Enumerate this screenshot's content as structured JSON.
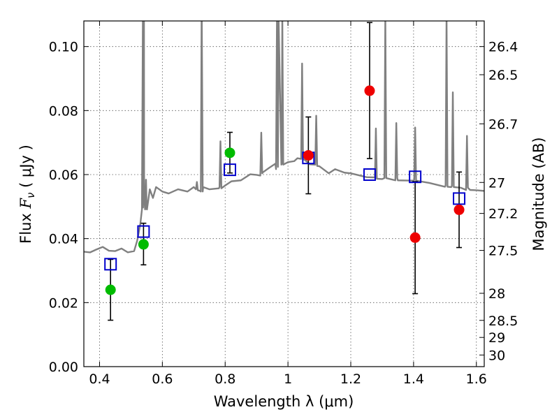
{
  "chart_data": {
    "type": "scatter",
    "xlabel": "Wavelength  λ (μm)",
    "ylabel_prefix": "Flux  ",
    "ylabel_var": "F",
    "ylabel_sub": "ν",
    "ylabel_suffix": "  ( μJy )",
    "y2label": "Magnitude (AB)",
    "xlim": [
      0.35,
      1.625
    ],
    "ylim": [
      0.0,
      0.108
    ],
    "xticks": [
      0.4,
      0.6,
      0.8,
      1.0,
      1.2,
      1.4,
      1.6
    ],
    "xtick_labels": [
      "0.4",
      "0.6",
      "0.8",
      "1",
      "1.2",
      "1.4",
      "1.6"
    ],
    "yticks": [
      0.0,
      0.02,
      0.04,
      0.06,
      0.08,
      0.1
    ],
    "ytick_labels": [
      "0.00",
      "0.02",
      "0.04",
      "0.06",
      "0.08",
      "0.10"
    ],
    "y2ticks": [
      26.4,
      26.5,
      26.7,
      27,
      27.2,
      27.5,
      28,
      28.5,
      29,
      30
    ],
    "y2tick_labels": [
      "26.4",
      "26.5",
      "26.7",
      "27",
      "27.2",
      "27.5",
      "28",
      "28.5",
      "29",
      "30"
    ],
    "grid": true,
    "colors": {
      "model": "#808080",
      "green": "#00bb00",
      "red": "#ee0000",
      "box": "#0000cc",
      "errorbar": "#000000"
    },
    "model_spectrum": {
      "x": [
        0.35,
        0.37,
        0.39,
        0.41,
        0.43,
        0.45,
        0.47,
        0.49,
        0.51,
        0.52,
        0.53,
        0.535,
        0.538,
        0.542,
        0.55,
        0.56,
        0.57,
        0.58,
        0.59,
        0.6,
        0.62,
        0.65,
        0.68,
        0.7,
        0.72,
        0.725,
        0.73,
        0.75,
        0.78,
        0.8,
        0.82,
        0.85,
        0.88,
        0.9,
        0.92,
        0.94,
        0.96,
        0.97,
        0.98,
        1.0,
        1.02,
        1.03,
        1.05,
        1.07,
        1.1,
        1.13,
        1.15,
        1.18,
        1.2,
        1.25,
        1.3,
        1.31,
        1.35,
        1.4,
        1.45,
        1.5,
        1.52,
        1.55,
        1.58,
        1.6,
        1.625
      ],
      "y": [
        0.0355,
        0.036,
        0.0365,
        0.037,
        0.0365,
        0.036,
        0.0365,
        0.036,
        0.036,
        0.039,
        0.045,
        0.049,
        0.11,
        0.053,
        0.05,
        0.055,
        0.053,
        0.056,
        0.055,
        0.055,
        0.054,
        0.055,
        0.055,
        0.056,
        0.0545,
        0.11,
        0.056,
        0.055,
        0.056,
        0.0565,
        0.0575,
        0.0585,
        0.06,
        0.0595,
        0.061,
        0.062,
        0.063,
        0.11,
        0.063,
        0.0635,
        0.0645,
        0.065,
        0.0645,
        0.0635,
        0.0625,
        0.06,
        0.062,
        0.0605,
        0.06,
        0.0595,
        0.0585,
        0.11,
        0.0585,
        0.058,
        0.057,
        0.0565,
        0.056,
        0.0555,
        0.0555,
        0.055,
        0.0545
      ],
      "emission_lines": [
        {
          "x": 0.5415,
          "peak": 0.11,
          "base": 0.05
        },
        {
          "x": 0.548,
          "peak": 0.058,
          "base": 0.049
        },
        {
          "x": 0.71,
          "peak": 0.058,
          "base": 0.055
        },
        {
          "x": 0.7255,
          "peak": 0.11,
          "base": 0.055
        },
        {
          "x": 0.785,
          "peak": 0.07,
          "base": 0.056
        },
        {
          "x": 0.915,
          "peak": 0.073,
          "base": 0.06
        },
        {
          "x": 0.965,
          "peak": 0.11,
          "base": 0.062
        },
        {
          "x": 0.982,
          "peak": 0.11,
          "base": 0.063
        },
        {
          "x": 1.045,
          "peak": 0.095,
          "base": 0.0645
        },
        {
          "x": 1.09,
          "peak": 0.078,
          "base": 0.063
        },
        {
          "x": 1.28,
          "peak": 0.074,
          "base": 0.059
        },
        {
          "x": 1.31,
          "peak": 0.11,
          "base": 0.0585
        },
        {
          "x": 1.345,
          "peak": 0.076,
          "base": 0.0585
        },
        {
          "x": 1.405,
          "peak": 0.075,
          "base": 0.058
        },
        {
          "x": 1.505,
          "peak": 0.11,
          "base": 0.0565
        },
        {
          "x": 1.525,
          "peak": 0.086,
          "base": 0.056
        },
        {
          "x": 1.57,
          "peak": 0.072,
          "base": 0.0555
        }
      ]
    },
    "observed_points": [
      {
        "x": 0.435,
        "y": 0.024,
        "yerr_low": 0.0145,
        "yerr_high": 0.0335,
        "color": "green"
      },
      {
        "x": 0.54,
        "y": 0.0382,
        "yerr_low": 0.0318,
        "yerr_high": 0.0448,
        "color": "green"
      },
      {
        "x": 0.815,
        "y": 0.0668,
        "yerr_low": 0.0605,
        "yerr_high": 0.0732,
        "color": "green"
      },
      {
        "x": 1.065,
        "y": 0.066,
        "yerr_low": 0.054,
        "yerr_high": 0.078,
        "color": "red"
      },
      {
        "x": 1.26,
        "y": 0.0862,
        "yerr_low": 0.065,
        "yerr_high": 0.1075,
        "color": "red"
      },
      {
        "x": 1.405,
        "y": 0.0403,
        "yerr_low": 0.0228,
        "yerr_high": 0.0578,
        "color": "red"
      },
      {
        "x": 1.545,
        "y": 0.049,
        "yerr_low": 0.0372,
        "yerr_high": 0.0608,
        "color": "red"
      }
    ],
    "model_photometry": [
      {
        "x": 0.435,
        "y": 0.032
      },
      {
        "x": 0.54,
        "y": 0.0422
      },
      {
        "x": 0.815,
        "y": 0.0615
      },
      {
        "x": 1.065,
        "y": 0.0652
      },
      {
        "x": 1.26,
        "y": 0.06
      },
      {
        "x": 1.405,
        "y": 0.0593
      },
      {
        "x": 1.545,
        "y": 0.0525
      }
    ]
  }
}
